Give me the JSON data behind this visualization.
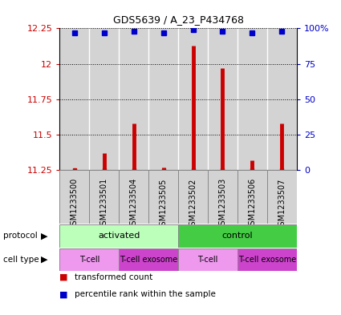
{
  "title": "GDS5639 / A_23_P434768",
  "samples": [
    "GSM1233500",
    "GSM1233501",
    "GSM1233504",
    "GSM1233505",
    "GSM1233502",
    "GSM1233503",
    "GSM1233506",
    "GSM1233507"
  ],
  "transformed_counts": [
    11.26,
    11.37,
    11.58,
    11.27,
    12.13,
    11.97,
    11.32,
    11.58
  ],
  "percentile_ranks": [
    97,
    97,
    98,
    97,
    99,
    98,
    97,
    98
  ],
  "ylim": [
    11.25,
    12.25
  ],
  "yticks": [
    11.25,
    11.5,
    11.75,
    12.0,
    12.25
  ],
  "ytick_labels": [
    "11.25",
    "11.5",
    "11.75",
    "12",
    "12.25"
  ],
  "right_yticks": [
    0,
    25,
    50,
    75,
    100
  ],
  "right_ytick_labels": [
    "0",
    "25",
    "50",
    "75",
    "100%"
  ],
  "bar_color": "#cc0000",
  "dot_color": "#0000cc",
  "bar_base": 11.25,
  "protocol_labels": [
    "activated",
    "control"
  ],
  "protocol_color_activated": "#bbffbb",
  "protocol_color_control": "#44cc44",
  "cell_type_labels": [
    "T-cell",
    "T-cell exosome",
    "T-cell",
    "T-cell exosome"
  ],
  "cell_type_color_main": "#ee99ee",
  "cell_type_color_exo": "#cc44cc",
  "gray_bg": "#d3d3d3",
  "white_bg": "#ffffff",
  "legend_red_label": "transformed count",
  "legend_blue_label": "percentile rank within the sample",
  "left_axis_color": "#cc0000",
  "right_axis_color": "#0000cc",
  "border_color": "#888888"
}
